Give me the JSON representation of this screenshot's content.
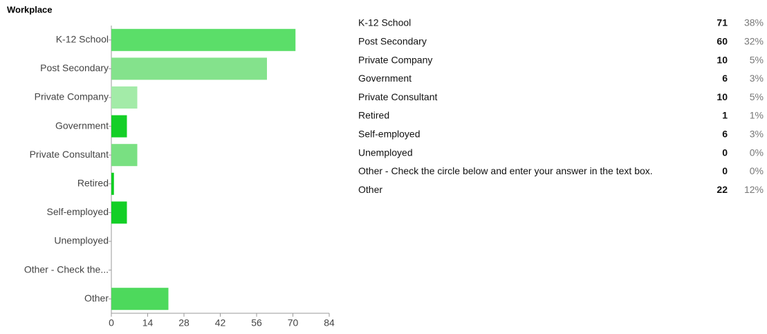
{
  "title": "Workplace",
  "chart_data": {
    "type": "bar",
    "orientation": "horizontal",
    "categories": [
      "K-12 School",
      "Post Secondary",
      "Private Company",
      "Government",
      "Private Consultant",
      "Retired",
      "Self-employed",
      "Unemployed",
      "Other - Check the...",
      "Other"
    ],
    "values": [
      71,
      60,
      10,
      6,
      10,
      1,
      6,
      0,
      0,
      22
    ],
    "colors": [
      "#5bde69",
      "#84e28c",
      "#a3eba8",
      "#14cf27",
      "#79e082",
      "#0ecf22",
      "#13cf26",
      "#5bde69",
      "#5bde69",
      "#4dd95c"
    ],
    "xlim": [
      0,
      84
    ],
    "xticks": [
      0,
      14,
      28,
      42,
      56,
      70,
      84
    ],
    "grid": false
  },
  "table": {
    "rows": [
      [
        "K-12 School",
        71,
        "38%"
      ],
      [
        "Post Secondary",
        60,
        "32%"
      ],
      [
        "Private Company",
        10,
        "5%"
      ],
      [
        "Government",
        6,
        "3%"
      ],
      [
        "Private Consultant",
        10,
        "5%"
      ],
      [
        "Retired",
        1,
        "1%"
      ],
      [
        "Self-employed",
        6,
        "3%"
      ],
      [
        "Unemployed",
        0,
        "0%"
      ],
      [
        "Other - Check the circle below and enter your answer in the text box.",
        0,
        "0%"
      ],
      [
        "Other",
        22,
        "12%"
      ]
    ]
  }
}
